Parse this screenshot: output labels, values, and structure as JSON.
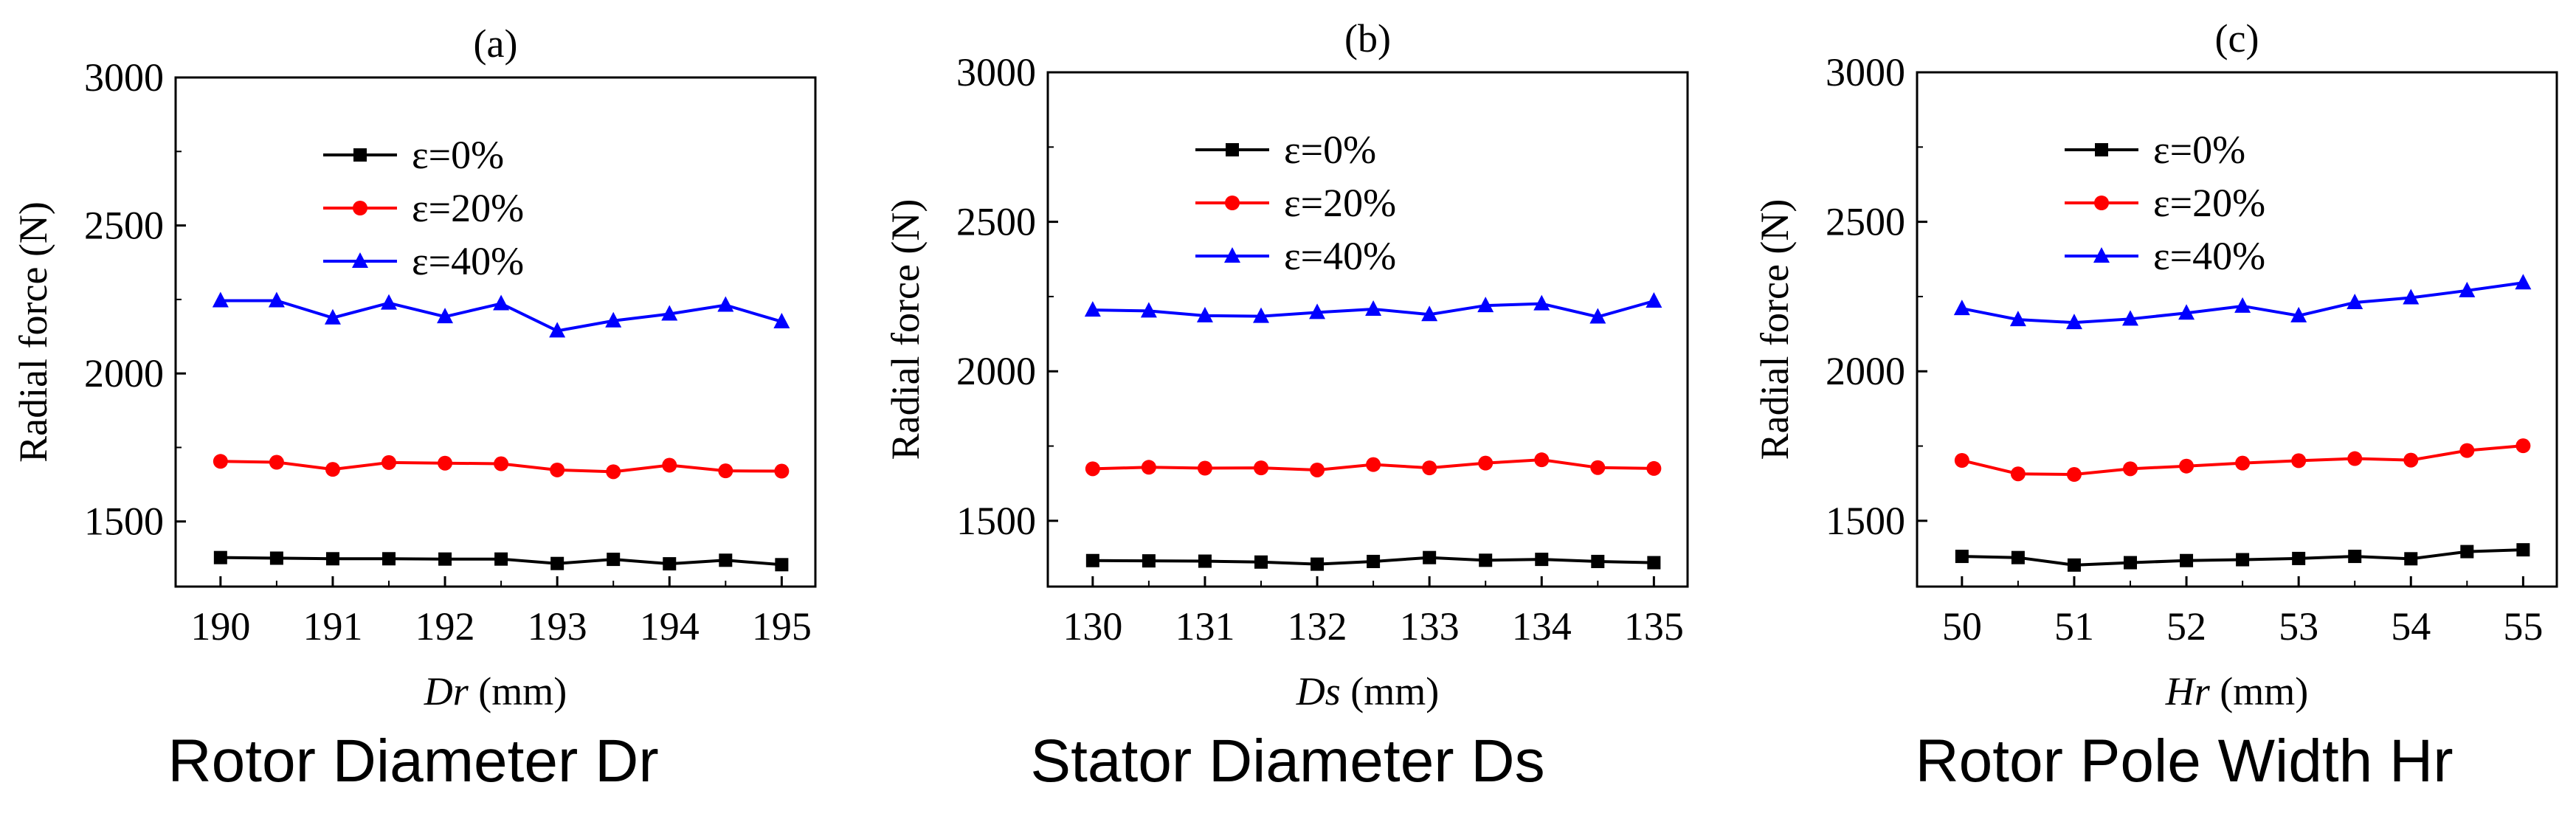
{
  "charts": [
    {
      "panel": "(a)",
      "caption": "Rotor Diameter Dr",
      "x_label_italic": "Dr",
      "x_label_rest": " (mm)",
      "ylabel": "Radial force (N)"
    },
    {
      "panel": "(b)",
      "caption": "Stator Diameter Ds",
      "x_label_italic": "Ds",
      "x_label_rest": " (mm)",
      "ylabel": "Radial force (N)"
    },
    {
      "panel": "(c)",
      "caption": "Rotor Pole Width Hr",
      "x_label_italic": "Hr",
      "x_label_rest": " (mm)",
      "ylabel": "Radial force (N)"
    }
  ],
  "chart_data": [
    {
      "type": "line",
      "title": "(a)",
      "xlabel": "Dr (mm)",
      "ylabel": "Radial force (N)",
      "x": [
        190,
        190.5,
        191,
        191.5,
        192,
        192.5,
        193,
        193.5,
        194,
        194.5,
        195
      ],
      "xticks": [
        190,
        191,
        192,
        193,
        194,
        195
      ],
      "xlim": [
        189.6,
        195.3
      ],
      "ylim": [
        1280,
        3000
      ],
      "yticks": [
        1500,
        2000,
        2500,
        3000
      ],
      "grid": false,
      "legend_position": "top-center",
      "series": [
        {
          "name": "ε=0%",
          "color": "#000000",
          "marker": "square",
          "values": [
            1378,
            1376,
            1374,
            1374,
            1373,
            1373,
            1358,
            1372,
            1357,
            1369,
            1354
          ]
        },
        {
          "name": "ε=20%",
          "color": "#ff0000",
          "marker": "circle",
          "values": [
            1703,
            1700,
            1676,
            1699,
            1697,
            1695,
            1674,
            1668,
            1690,
            1671,
            1670
          ]
        },
        {
          "name": "ε=40%",
          "color": "#0000ff",
          "marker": "triangle",
          "values": [
            2246,
            2246,
            2188,
            2238,
            2192,
            2236,
            2144,
            2178,
            2201,
            2231,
            2175
          ]
        }
      ]
    },
    {
      "type": "line",
      "title": "(b)",
      "xlabel": "Ds (mm)",
      "ylabel": "Radial force (N)",
      "x": [
        130,
        130.5,
        131,
        131.5,
        132,
        132.5,
        133,
        133.5,
        134,
        134.5,
        135
      ],
      "xticks": [
        130,
        131,
        132,
        133,
        134,
        135
      ],
      "xlim": [
        129.6,
        135.3
      ],
      "ylim": [
        1280,
        3000
      ],
      "yticks": [
        1500,
        2000,
        2500,
        3000
      ],
      "grid": false,
      "legend_position": "top-center",
      "series": [
        {
          "name": "ε=0%",
          "color": "#000000",
          "marker": "square",
          "values": [
            1367,
            1366,
            1365,
            1362,
            1355,
            1364,
            1377,
            1368,
            1371,
            1364,
            1360
          ]
        },
        {
          "name": "ε=20%",
          "color": "#ff0000",
          "marker": "circle",
          "values": [
            1674,
            1679,
            1676,
            1677,
            1670,
            1688,
            1677,
            1693,
            1704,
            1678,
            1675
          ]
        },
        {
          "name": "ε=40%",
          "color": "#0000ff",
          "marker": "triangle",
          "values": [
            2205,
            2202,
            2186,
            2184,
            2197,
            2208,
            2190,
            2220,
            2226,
            2182,
            2235
          ]
        }
      ]
    },
    {
      "type": "line",
      "title": "(c)",
      "xlabel": "Hr (mm)",
      "ylabel": "Radial force (N)",
      "x": [
        50,
        50.5,
        51,
        51.5,
        52,
        52.5,
        53,
        53.5,
        54,
        54.5,
        55
      ],
      "xticks": [
        50,
        51,
        52,
        53,
        54,
        55
      ],
      "xlim": [
        49.6,
        55.3
      ],
      "ylim": [
        1280,
        3000
      ],
      "yticks": [
        1500,
        2000,
        2500,
        3000
      ],
      "grid": false,
      "legend_position": "top-center",
      "series": [
        {
          "name": "ε=0%",
          "color": "#000000",
          "marker": "square",
          "values": [
            1381,
            1377,
            1352,
            1360,
            1367,
            1370,
            1374,
            1381,
            1373,
            1397,
            1403
          ]
        },
        {
          "name": "ε=20%",
          "color": "#ff0000",
          "marker": "circle",
          "values": [
            1702,
            1657,
            1655,
            1674,
            1683,
            1693,
            1701,
            1708,
            1703,
            1735,
            1751
          ]
        },
        {
          "name": "ε=40%",
          "color": "#0000ff",
          "marker": "triangle",
          "values": [
            2210,
            2173,
            2163,
            2175,
            2195,
            2218,
            2186,
            2230,
            2246,
            2270,
            2296
          ]
        }
      ]
    }
  ]
}
